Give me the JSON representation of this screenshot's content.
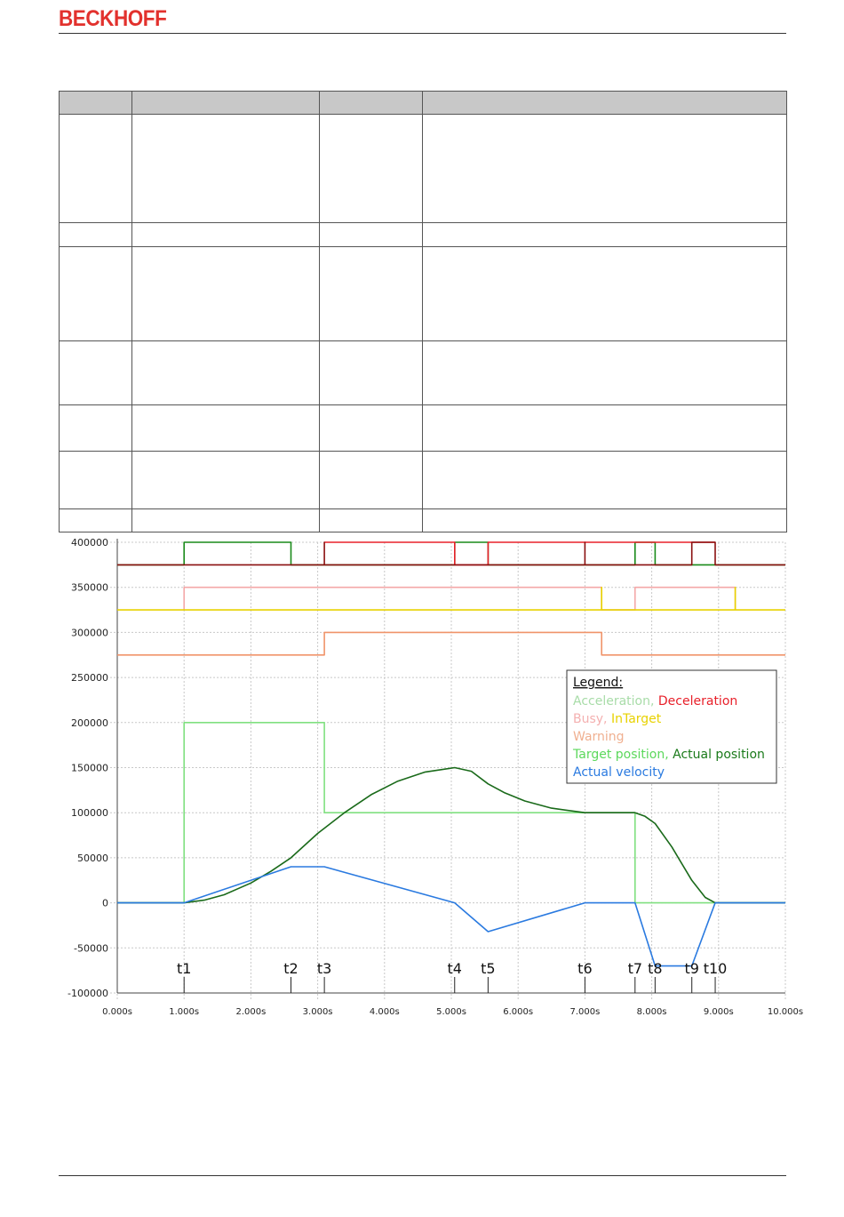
{
  "header": {
    "brand": "BECKHOFF"
  },
  "table": {
    "col_widths": [
      82,
      211,
      116,
      410
    ],
    "row_heights": [
      121,
      26,
      105,
      71,
      51,
      64,
      25
    ]
  },
  "chart_data": {
    "type": "line",
    "x_tick_labels": [
      "0.000s",
      "1.000s",
      "2.000s",
      "3.000s",
      "4.000s",
      "5.000s",
      "6.000s",
      "7.000s",
      "8.000s",
      "9.000s",
      "10.000s"
    ],
    "y_tick_labels": [
      "400000",
      "350000",
      "300000",
      "250000",
      "200000",
      "150000",
      "100000",
      "50000",
      "0",
      "-50000",
      "-100000"
    ],
    "xlim": [
      0,
      10
    ],
    "ylim": [
      -100000,
      400000
    ],
    "markers": [
      {
        "label": "t1",
        "x": 1.0
      },
      {
        "label": "t2",
        "x": 2.6
      },
      {
        "label": "t3",
        "x": 3.1
      },
      {
        "label": "t4",
        "x": 5.05
      },
      {
        "label": "t5",
        "x": 5.55
      },
      {
        "label": "t6",
        "x": 7.0
      },
      {
        "label": "t7",
        "x": 7.75
      },
      {
        "label": "t8",
        "x": 8.05
      },
      {
        "label": "t9",
        "x": 8.6
      },
      {
        "label": "t10",
        "x": 8.95
      }
    ],
    "legend": {
      "title": "Legend:",
      "placement": "right",
      "lines": [
        [
          {
            "text": "Acceleration,",
            "color": "#a8dca8"
          },
          {
            "text": "Deceleration",
            "color": "#e8202a"
          }
        ],
        [
          {
            "text": "Busy,",
            "color": "#f4b0b0"
          },
          {
            "text": "InTarget",
            "color": "#e8d200"
          }
        ],
        [
          {
            "text": "Warning",
            "color": "#f0b090"
          }
        ],
        [
          {
            "text": "Target position,",
            "color": "#5cd85c"
          },
          {
            "text": "Actual position",
            "color": "#1a7a1a"
          }
        ],
        [
          {
            "text": "Actual velocity",
            "color": "#2a7ae0"
          }
        ]
      ]
    },
    "series": [
      {
        "key": "acceleration",
        "color": "#1a8a1a",
        "points": [
          [
            0,
            375000
          ],
          [
            1.0,
            375000
          ],
          [
            1.0,
            400000
          ],
          [
            2.6,
            400000
          ],
          [
            2.6,
            375000
          ],
          [
            5.05,
            375000
          ],
          [
            5.05,
            400000
          ],
          [
            5.55,
            400000
          ],
          [
            5.55,
            375000
          ],
          [
            7.75,
            375000
          ],
          [
            7.75,
            400000
          ],
          [
            8.05,
            400000
          ],
          [
            8.05,
            375000
          ],
          [
            10,
            375000
          ]
        ]
      },
      {
        "key": "deceleration",
        "color": "#e8202a",
        "points": [
          [
            3.1,
            400000
          ],
          [
            5.05,
            400000
          ],
          [
            5.05,
            375000
          ],
          [
            5.55,
            375000
          ],
          [
            5.55,
            400000
          ],
          [
            7.0,
            400000
          ],
          [
            8.6,
            400000
          ],
          [
            8.6,
            400000
          ],
          [
            8.95,
            400000
          ]
        ]
      },
      {
        "key": "deceleration-base",
        "color": "#8a1010",
        "points": [
          [
            0,
            375000
          ],
          [
            1.0,
            375000
          ],
          [
            2.6,
            375000
          ],
          [
            3.1,
            375000
          ],
          [
            3.1,
            400000
          ],
          [
            3.1,
            375000
          ],
          [
            7.0,
            375000
          ],
          [
            7.0,
            400000
          ],
          [
            7.0,
            375000
          ],
          [
            8.6,
            375000
          ],
          [
            8.6,
            400000
          ],
          [
            8.95,
            400000
          ],
          [
            8.95,
            375000
          ],
          [
            10,
            375000
          ]
        ]
      },
      {
        "key": "busy",
        "color": "#f4a8a8",
        "points": [
          [
            1.0,
            325000
          ],
          [
            1.0,
            350000
          ],
          [
            7.25,
            350000
          ],
          [
            7.25,
            325000
          ],
          [
            7.75,
            325000
          ],
          [
            7.75,
            350000
          ],
          [
            9.25,
            350000
          ],
          [
            9.25,
            325000
          ]
        ]
      },
      {
        "key": "intarget",
        "color": "#e8d200",
        "points": [
          [
            0,
            325000
          ],
          [
            1.0,
            325000
          ],
          [
            7.25,
            325000
          ],
          [
            7.25,
            350000
          ],
          [
            7.25,
            325000
          ],
          [
            9.25,
            325000
          ],
          [
            9.25,
            350000
          ],
          [
            9.25,
            325000
          ],
          [
            10,
            325000
          ]
        ]
      },
      {
        "key": "warning",
        "color": "#f0946a",
        "points": [
          [
            0,
            275000
          ],
          [
            3.1,
            275000
          ],
          [
            3.1,
            300000
          ],
          [
            7.25,
            300000
          ],
          [
            7.25,
            275000
          ],
          [
            10,
            275000
          ]
        ]
      },
      {
        "key": "target-position",
        "color": "#80e080",
        "points": [
          [
            0,
            0
          ],
          [
            1.0,
            0
          ],
          [
            1.0,
            200000
          ],
          [
            3.1,
            200000
          ],
          [
            3.1,
            100000
          ],
          [
            7.75,
            100000
          ],
          [
            7.75,
            0
          ],
          [
            10,
            0
          ]
        ]
      },
      {
        "key": "actual-position",
        "color": "#1a6a1a",
        "points": [
          [
            0,
            0
          ],
          [
            1.0,
            0
          ],
          [
            1.3,
            3000
          ],
          [
            1.6,
            9000
          ],
          [
            2.0,
            22000
          ],
          [
            2.3,
            35000
          ],
          [
            2.6,
            50000
          ],
          [
            3.0,
            77000
          ],
          [
            3.4,
            100000
          ],
          [
            3.8,
            120000
          ],
          [
            4.2,
            135000
          ],
          [
            4.6,
            145000
          ],
          [
            5.05,
            150000
          ],
          [
            5.3,
            146000
          ],
          [
            5.55,
            132000
          ],
          [
            5.8,
            122000
          ],
          [
            6.1,
            113000
          ],
          [
            6.5,
            105000
          ],
          [
            7.0,
            100000
          ],
          [
            7.5,
            100000
          ],
          [
            7.75,
            100000
          ],
          [
            7.9,
            96000
          ],
          [
            8.05,
            88000
          ],
          [
            8.3,
            62000
          ],
          [
            8.6,
            25000
          ],
          [
            8.8,
            6000
          ],
          [
            8.95,
            0
          ],
          [
            10,
            0
          ]
        ]
      },
      {
        "key": "actual-velocity",
        "color": "#2a7ae0",
        "points": [
          [
            0,
            0
          ],
          [
            1.0,
            0
          ],
          [
            2.6,
            40000
          ],
          [
            3.1,
            40000
          ],
          [
            5.05,
            0
          ],
          [
            5.55,
            -32000
          ],
          [
            7.0,
            0
          ],
          [
            7.75,
            0
          ],
          [
            8.05,
            -70000
          ],
          [
            8.6,
            -70000
          ],
          [
            8.95,
            0
          ],
          [
            10,
            0
          ]
        ]
      }
    ]
  }
}
